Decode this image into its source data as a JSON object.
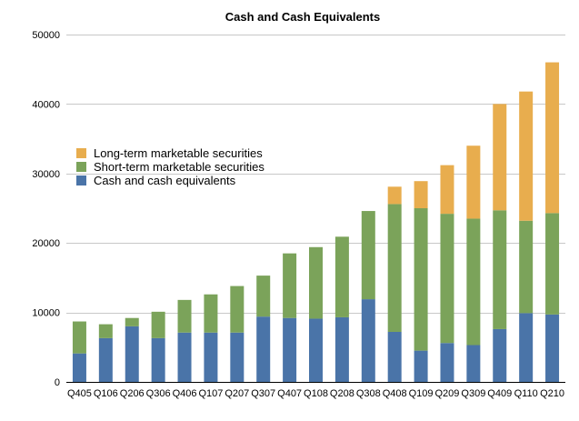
{
  "chart_data": {
    "type": "bar",
    "stacked": true,
    "title": "Cash and Cash Equivalents",
    "xlabel": "",
    "ylabel": "",
    "ylim": [
      0,
      50000
    ],
    "yticks": [
      0,
      10000,
      20000,
      30000,
      40000,
      50000
    ],
    "grid": true,
    "legend_position": "left",
    "categories": [
      "Q405",
      "Q106",
      "Q206",
      "Q306",
      "Q406",
      "Q107",
      "Q207",
      "Q307",
      "Q407",
      "Q108",
      "Q208",
      "Q308",
      "Q408",
      "Q109",
      "Q209",
      "Q309",
      "Q409",
      "Q110",
      "Q210"
    ],
    "series": [
      {
        "name": "Cash and cash equivalents",
        "color": "#4a74a8",
        "values": [
          4100,
          6300,
          8000,
          6300,
          7100,
          7100,
          7100,
          9400,
          9200,
          9100,
          9300,
          11900,
          7200,
          4500,
          5600,
          5300,
          7600,
          9900,
          9700
        ]
      },
      {
        "name": "Short-term marketable securities",
        "color": "#7ba35a",
        "values": [
          4600,
          2000,
          1200,
          3800,
          4700,
          5500,
          6700,
          5900,
          9300,
          10300,
          11600,
          12700,
          18400,
          20500,
          18600,
          18200,
          17100,
          13300,
          14600
        ]
      },
      {
        "name": "Long-term marketable securities",
        "color": "#e8ad4e",
        "values": [
          0,
          0,
          0,
          0,
          0,
          0,
          0,
          0,
          0,
          0,
          0,
          0,
          2500,
          3900,
          7000,
          10500,
          15300,
          18600,
          21700
        ]
      }
    ]
  }
}
